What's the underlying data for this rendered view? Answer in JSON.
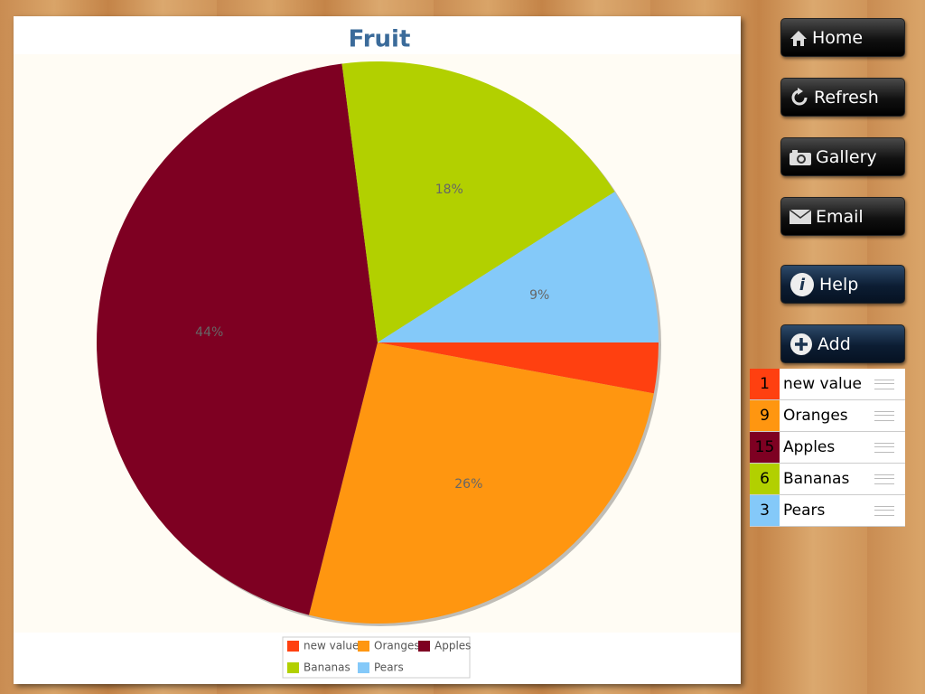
{
  "buttons": [
    "Home",
    "Refresh",
    "Gallery",
    "Email",
    "Help",
    "Add"
  ],
  "list": [
    {
      "count": 1,
      "name": "new value"
    },
    {
      "count": 9,
      "name": "Oranges"
    },
    {
      "count": 15,
      "name": "Apples"
    },
    {
      "count": 6,
      "name": "Bananas"
    },
    {
      "count": 3,
      "name": "Pears"
    }
  ],
  "chart_data": {
    "type": "pie",
    "title": "Fruit",
    "categories": [
      "new value",
      "Oranges",
      "Apples",
      "Bananas",
      "Pears"
    ],
    "values": [
      2.9,
      26,
      44,
      18,
      9
    ],
    "value_labels": [
      null,
      "26%",
      "44%",
      "18%",
      "9%"
    ],
    "colors": [
      "#ff4010",
      "#ff9610",
      "#7e0022",
      "#b2d000",
      "#84c9f9"
    ]
  }
}
